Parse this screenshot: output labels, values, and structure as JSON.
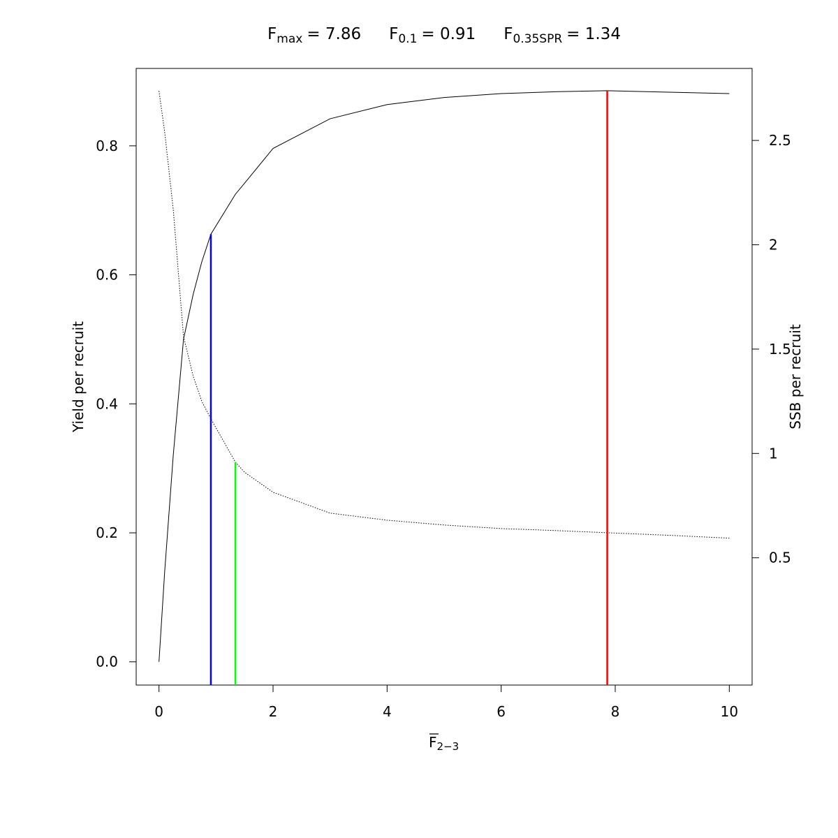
{
  "chart_data": {
    "type": "line",
    "title": [
      {
        "main": "F",
        "sub": "max",
        "text": "= 7.86"
      },
      {
        "main": "F",
        "sub": "0.1",
        "text": "= 0.91"
      },
      {
        "main": "F",
        "sub": "0.35SPR",
        "text": "= 1.34"
      }
    ],
    "xlabel": {
      "main": "F",
      "sub": "2−3"
    },
    "ylabel": "Yield per recruit",
    "y2label": "SSB per recruit",
    "x": [
      0,
      0.1,
      0.25,
      0.43,
      0.6,
      0.75,
      0.91,
      1.34,
      1.5,
      2,
      3,
      4,
      5,
      6,
      7,
      7.86,
      9,
      10
    ],
    "series": [
      {
        "name": "Yield per recruit",
        "color": "#000000",
        "dash": "solid",
        "axis": "y",
        "values": [
          0,
          0.14,
          0.32,
          0.5,
          0.57,
          0.62,
          0.663,
          0.725,
          0.742,
          0.796,
          0.842,
          0.864,
          0.875,
          0.881,
          0.884,
          0.8855,
          0.883,
          0.881
        ]
      },
      {
        "name": "SSB per recruit",
        "color": "#000000",
        "dash": "dotted",
        "axis": "y2",
        "values": [
          2.737,
          2.54,
          2.17,
          1.56,
          1.37,
          1.25,
          1.166,
          0.958,
          0.91,
          0.814,
          0.714,
          0.68,
          0.657,
          0.64,
          0.63,
          0.62,
          0.607,
          0.594
        ]
      }
    ],
    "reference_lines": [
      {
        "x": 7.86,
        "top": 0.8855,
        "axis": "y",
        "color": "#ff0000"
      },
      {
        "x": 0.91,
        "top": 0.663,
        "axis": "y",
        "color": "#0000ff"
      },
      {
        "x": 1.34,
        "top": 0.958,
        "axis": "y2",
        "color": "#00ff00"
      }
    ],
    "xlim": [
      -0.4,
      10.4
    ],
    "xticks": [
      0,
      2,
      4,
      6,
      8,
      10
    ],
    "ylim": [
      -0.036,
      0.92
    ],
    "yticks": [
      {
        "value": 0,
        "label": "0.0"
      },
      0.2,
      0.4,
      0.6,
      0.8
    ],
    "y2lim": [
      -0.11,
      2.845
    ],
    "y2ticks": [
      0.5,
      1,
      1.5,
      2,
      2.5
    ]
  }
}
